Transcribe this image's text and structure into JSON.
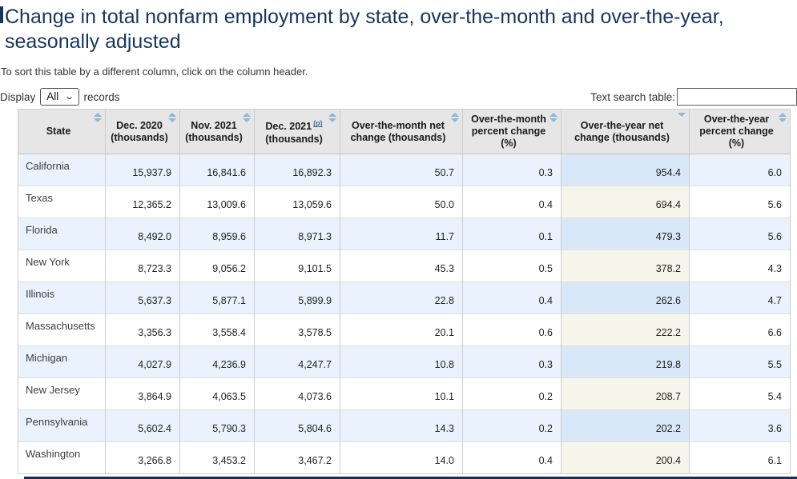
{
  "header": {
    "title": "Change in total nonfarm employment by state, over-the-month and over-the-year, seasonally adjusted",
    "hint": "To sort this table by a different column, click on the column header."
  },
  "controls": {
    "display_label": "Display",
    "display_value": "All",
    "records_label": "records",
    "search_label": "Text search table:",
    "search_value": ""
  },
  "colors": {
    "title": "#17365d",
    "header_bg": "#e6e6e6",
    "row_alt_bg": "#e9f2fd",
    "sorted_odd_bg": "#d8e8f8",
    "sorted_even_bg": "#f6f4eb",
    "sort_arrow": "#8fb6d4",
    "link": "#3a6d99",
    "bottom_bar": "#1c2f4f"
  },
  "table": {
    "columns": [
      {
        "id": "state",
        "label": "State",
        "sup": "",
        "label2": "",
        "sort": "both",
        "sorted": false
      },
      {
        "id": "dec-2020",
        "label": "Dec. 2020 (thousands)",
        "sup": "",
        "label2": "",
        "sort": "both",
        "sorted": false
      },
      {
        "id": "nov-2021",
        "label": "Nov. 2021 (thousands)",
        "sup": "",
        "label2": "",
        "sort": "both",
        "sorted": false
      },
      {
        "id": "dec-2021",
        "label": "Dec. 2021",
        "sup": "(p)",
        "label2": "(thousands)",
        "sort": "both",
        "sorted": false
      },
      {
        "id": "otm-net-change",
        "label": "Over-the-month net change (thousands)",
        "sup": "",
        "label2": "",
        "sort": "both",
        "sorted": false
      },
      {
        "id": "otm-pct-change",
        "label": "Over-the-month percent change (%)",
        "sup": "",
        "label2": "",
        "sort": "both",
        "sorted": false
      },
      {
        "id": "oty-net-change",
        "label": "Over-the-year net change (thousands)",
        "sup": "",
        "label2": "",
        "sort": "desc",
        "sorted": true
      },
      {
        "id": "oty-pct-change",
        "label": "Over-the-year percent change (%)",
        "sup": "",
        "label2": "",
        "sort": "both",
        "sorted": false
      }
    ],
    "rows": [
      {
        "state": "California",
        "values": [
          "15,937.9",
          "16,841.6",
          "16,892.3",
          "50.7",
          "0.3",
          "954.4",
          "6.0"
        ]
      },
      {
        "state": "Texas",
        "values": [
          "12,365.2",
          "13,009.6",
          "13,059.6",
          "50.0",
          "0.4",
          "694.4",
          "5.6"
        ]
      },
      {
        "state": "Florida",
        "values": [
          "8,492.0",
          "8,959.6",
          "8,971.3",
          "11.7",
          "0.1",
          "479.3",
          "5.6"
        ]
      },
      {
        "state": "New York",
        "values": [
          "8,723.3",
          "9,056.2",
          "9,101.5",
          "45.3",
          "0.5",
          "378.2",
          "4.3"
        ]
      },
      {
        "state": "Illinois",
        "values": [
          "5,637.3",
          "5,877.1",
          "5,899.9",
          "22.8",
          "0.4",
          "262.6",
          "4.7"
        ]
      },
      {
        "state": "Massachusetts",
        "values": [
          "3,356.3",
          "3,558.4",
          "3,578.5",
          "20.1",
          "0.6",
          "222.2",
          "6.6"
        ]
      },
      {
        "state": "Michigan",
        "values": [
          "4,027.9",
          "4,236.9",
          "4,247.7",
          "10.8",
          "0.3",
          "219.8",
          "5.5"
        ]
      },
      {
        "state": "New Jersey",
        "values": [
          "3,864.9",
          "4,063.5",
          "4,073.6",
          "10.1",
          "0.2",
          "208.7",
          "5.4"
        ]
      },
      {
        "state": "Pennsylvania",
        "values": [
          "5,602.4",
          "5,790.3",
          "5,804.6",
          "14.3",
          "0.2",
          "202.2",
          "3.6"
        ]
      },
      {
        "state": "Washington",
        "values": [
          "3,266.8",
          "3,453.2",
          "3,467.2",
          "14.0",
          "0.4",
          "200.4",
          "6.1"
        ]
      }
    ]
  }
}
